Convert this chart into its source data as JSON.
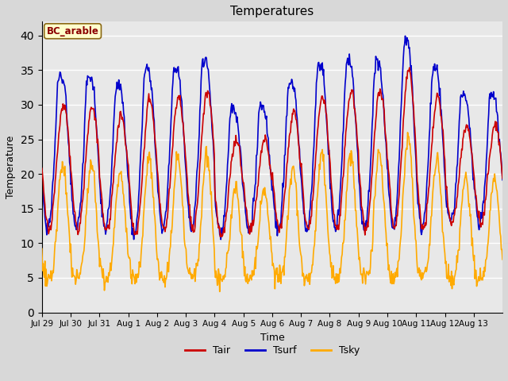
{
  "title": "Temperatures",
  "xlabel": "Time",
  "ylabel": "Temperature",
  "legend_label": "BC_arable",
  "series_labels": [
    "Tair",
    "Tsurf",
    "Tsky"
  ],
  "series_colors": [
    "#cc0000",
    "#0000cc",
    "#ffaa00"
  ],
  "ylim": [
    0,
    42
  ],
  "yticks": [
    0,
    5,
    10,
    15,
    20,
    25,
    30,
    35,
    40
  ],
  "background_color": "#e8e8e8",
  "xtick_labels": [
    "Jul 29",
    "Jul 30",
    "Jul 31",
    "Aug 1",
    "Aug 2",
    "Aug 3",
    "Aug 4",
    "Aug 5",
    "Aug 6",
    "Aug 7",
    "Aug 8",
    "Aug 9",
    "Aug 10",
    "Aug 11",
    "Aug 12",
    "Aug 13"
  ],
  "n_days": 16,
  "points_per_day": 48,
  "title_fontsize": 11,
  "axis_fontsize": 9,
  "legend_fontsize": 9,
  "line_width": 1.2,
  "fig_width": 6.4,
  "fig_height": 4.8,
  "dpi": 100
}
